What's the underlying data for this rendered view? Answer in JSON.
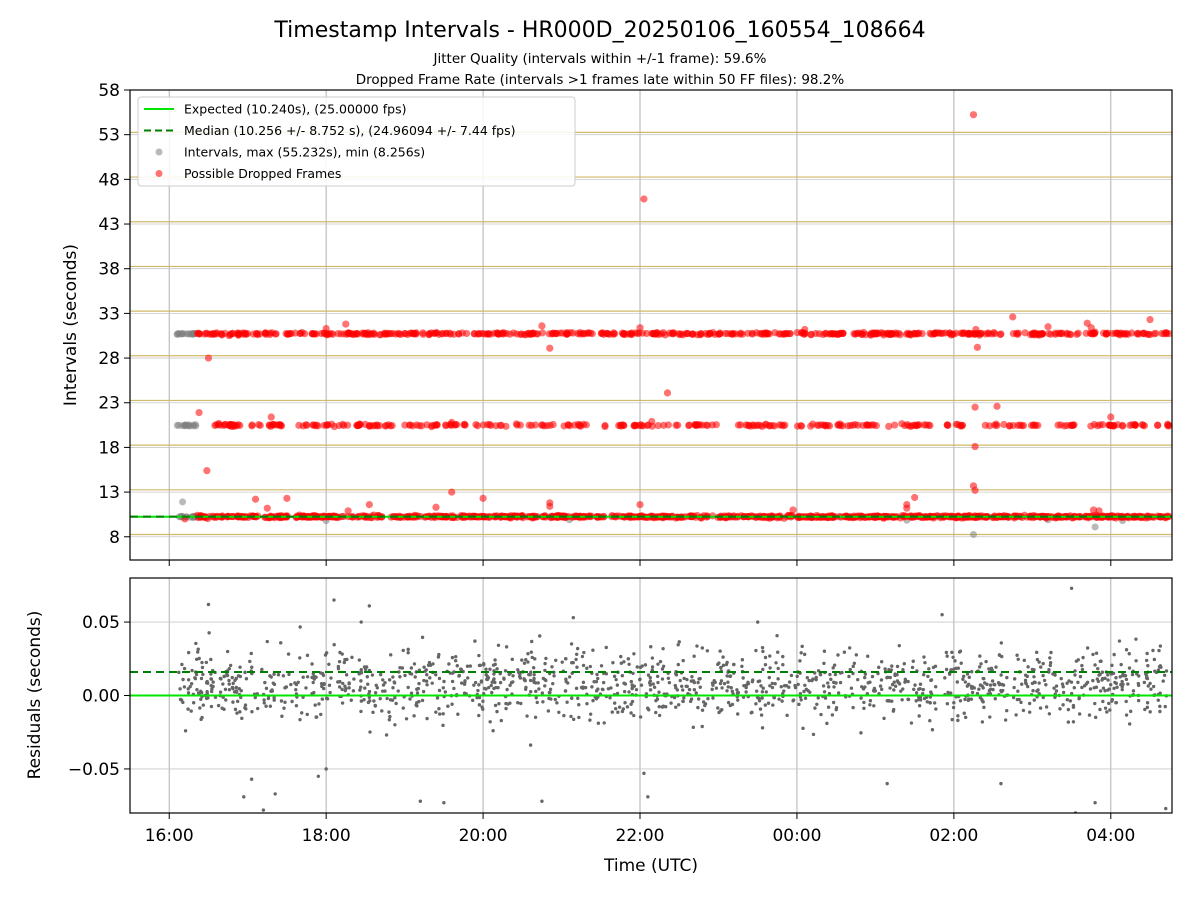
{
  "chart_data": [
    {
      "type": "scatter",
      "title": "Timestamp Intervals - HR000D_20250106_160554_108664",
      "subtitle": [
        "Jitter Quality (intervals within +/-1 frame): 59.6%",
        "Dropped Frame Rate (intervals >1 frames late within 50 FF files): 98.2%"
      ],
      "xlabel": "",
      "ylabel": "Intervals (seconds)",
      "x_unit": "hours since 00:00 UTC 2025-01-06",
      "xlim": [
        15.5,
        28.78
      ],
      "ylim": [
        5.4,
        58
      ],
      "yticks": [
        8,
        13,
        18,
        23,
        28,
        33,
        38,
        43,
        48,
        53,
        58
      ],
      "ytick_labels": [
        "8",
        "13",
        "18",
        "23",
        "28",
        "33",
        "38",
        "43",
        "48",
        "53",
        "58"
      ],
      "xticks": [
        16,
        18,
        20,
        22,
        24,
        26,
        28
      ],
      "grid": true,
      "hlines_y": [
        8.256,
        13.256,
        18.256,
        23.256,
        28.256,
        33.256,
        38.256,
        43.256,
        48.256,
        53.256
      ],
      "legend": {
        "placement": "upper-left",
        "entries": [
          {
            "label": "Expected (10.240s), (25.00000 fps)",
            "style": "solid-line",
            "color": "#00e600"
          },
          {
            "label": "Median (10.256 +/- 8.752 s), (24.96094 +/- 7.44 fps)",
            "style": "dashed-line",
            "color": "#008000"
          },
          {
            "label": "Intervals, max (55.232s), min (8.256s)",
            "style": "dot",
            "color": "#808080"
          },
          {
            "label": "Possible Dropped Frames",
            "style": "dot",
            "color": "#ff0000"
          }
        ]
      },
      "expected_y": 10.24,
      "median_y": 10.256,
      "series": [
        {
          "name": "Intervals, max (55.232s), min (8.256s)",
          "color": "#808080",
          "points": [
            [
              16.12,
              30.72
            ],
            [
              16.17,
              30.72
            ],
            [
              16.22,
              30.72
            ],
            [
              16.28,
              30.72
            ],
            [
              16.33,
              30.72
            ],
            [
              16.12,
              20.48
            ],
            [
              16.2,
              20.48
            ],
            [
              16.13,
              10.24
            ],
            [
              16.22,
              10.24
            ],
            [
              16.3,
              10.24
            ],
            [
              16.17,
              11.9
            ],
            [
              18.0,
              9.8
            ],
            [
              21.1,
              9.9
            ],
            [
              25.4,
              9.85
            ],
            [
              26.25,
              8.256
            ],
            [
              27.2,
              9.9
            ],
            [
              27.8,
              9.1
            ],
            [
              28.15,
              9.8
            ]
          ]
        },
        {
          "name": "Possible Dropped Frames",
          "color": "#ff0000",
          "bands": [
            {
              "y": 10.24,
              "from": 16.35,
              "to": 28.75
            },
            {
              "y": 30.72,
              "from": 16.35,
              "to": 28.75
            },
            {
              "y": 20.48,
              "from": 16.35,
              "to": 28.75
            }
          ],
          "band_gaps_y20": [
            [
              16.42,
              16.55
            ],
            [
              16.92,
              17.05
            ],
            [
              17.55,
              17.62
            ],
            [
              18.85,
              18.95
            ],
            [
              19.45,
              19.52
            ],
            [
              19.78,
              19.86
            ],
            [
              20.3,
              20.38
            ],
            [
              20.68,
              20.74
            ],
            [
              21.35,
              21.42
            ],
            [
              21.65,
              21.72
            ],
            [
              21.8,
              21.88
            ],
            [
              22.48,
              22.62
            ],
            [
              22.98,
              23.25
            ],
            [
              23.9,
              24.0
            ],
            [
              24.45,
              24.52
            ],
            [
              25.02,
              25.12
            ],
            [
              25.72,
              25.9
            ],
            [
              26.18,
              26.3
            ],
            [
              27.1,
              27.3
            ],
            [
              27.62,
              27.72
            ]
          ],
          "points": [
            [
              16.2,
              10.0
            ],
            [
              16.5,
              28.0
            ],
            [
              16.48,
              15.4
            ],
            [
              16.38,
              21.9
            ],
            [
              17.1,
              12.2
            ],
            [
              17.25,
              11.2
            ],
            [
              17.3,
              21.4
            ],
            [
              17.5,
              12.3
            ],
            [
              18.0,
              31.3
            ],
            [
              18.25,
              31.8
            ],
            [
              18.28,
              10.9
            ],
            [
              18.55,
              11.6
            ],
            [
              19.4,
              11.3
            ],
            [
              19.6,
              13.0
            ],
            [
              19.6,
              20.8
            ],
            [
              20.0,
              12.3
            ],
            [
              20.75,
              31.6
            ],
            [
              20.85,
              29.1
            ],
            [
              20.85,
              11.8
            ],
            [
              20.85,
              11.4
            ],
            [
              22.0,
              31.4
            ],
            [
              22.0,
              11.6
            ],
            [
              22.05,
              45.8
            ],
            [
              22.15,
              20.9
            ],
            [
              22.35,
              24.1
            ],
            [
              23.95,
              11.0
            ],
            [
              24.1,
              31.2
            ],
            [
              25.4,
              11.6
            ],
            [
              25.4,
              11.2
            ],
            [
              25.5,
              12.4
            ],
            [
              26.25,
              55.232
            ],
            [
              26.25,
              13.7
            ],
            [
              26.27,
              13.2
            ],
            [
              26.28,
              31.2
            ],
            [
              26.3,
              29.2
            ],
            [
              26.27,
              22.5
            ],
            [
              26.27,
              18.1
            ],
            [
              26.55,
              22.6
            ],
            [
              26.75,
              32.6
            ],
            [
              27.2,
              31.5
            ],
            [
              27.7,
              31.9
            ],
            [
              27.75,
              31.4
            ],
            [
              27.8,
              30.9
            ],
            [
              27.78,
              11.0
            ],
            [
              27.85,
              10.9
            ],
            [
              28.0,
              21.4
            ],
            [
              28.5,
              32.3
            ]
          ]
        }
      ],
      "median_color": "#008000",
      "expected_color": "#00e600",
      "hline_color": "#d2b86a"
    },
    {
      "type": "scatter",
      "title": "",
      "xlabel": "Time (UTC)",
      "ylabel": "Residuals (seconds)",
      "x_unit": "hours since 00:00 UTC 2025-01-06",
      "xlim": [
        15.5,
        28.78
      ],
      "ylim": [
        -0.08,
        0.08
      ],
      "yticks": [
        -0.05,
        0.0,
        0.05
      ],
      "ytick_labels": [
        "−0.05",
        "0.00",
        "0.05"
      ],
      "xticks": [
        16,
        18,
        20,
        22,
        24,
        26,
        28
      ],
      "xtick_labels": [
        "16:00",
        "18:00",
        "20:00",
        "22:00",
        "00:00",
        "02:00",
        "04:00"
      ],
      "grid": true,
      "expected_y": 0.0,
      "median_y": 0.016,
      "series": [
        {
          "name": "",
          "color": "#666666",
          "x_start": 16.12,
          "x_end": 28.75,
          "n": 1400,
          "mean": 0.007,
          "sd": 0.012,
          "points": [
            [
              16.5,
              0.062
            ],
            [
              17.2,
              -0.078
            ],
            [
              18.1,
              0.065
            ],
            [
              18.25,
              -0.082
            ],
            [
              18.55,
              0.061
            ],
            [
              19.2,
              -0.072
            ],
            [
              19.5,
              -0.073
            ],
            [
              20.75,
              -0.072
            ],
            [
              21.15,
              0.053
            ],
            [
              22.05,
              -0.053
            ],
            [
              22.1,
              -0.069
            ],
            [
              23.5,
              0.05
            ],
            [
              25.15,
              -0.06
            ],
            [
              25.85,
              0.055
            ],
            [
              26.6,
              -0.06
            ],
            [
              27.5,
              0.073
            ],
            [
              27.55,
              -0.08
            ],
            [
              27.8,
              -0.073
            ],
            [
              28.7,
              -0.077
            ],
            [
              16.95,
              -0.069
            ],
            [
              17.05,
              -0.057
            ],
            [
              17.35,
              -0.067
            ],
            [
              17.9,
              -0.055
            ],
            [
              18.0,
              -0.05
            ]
          ]
        }
      ]
    }
  ]
}
